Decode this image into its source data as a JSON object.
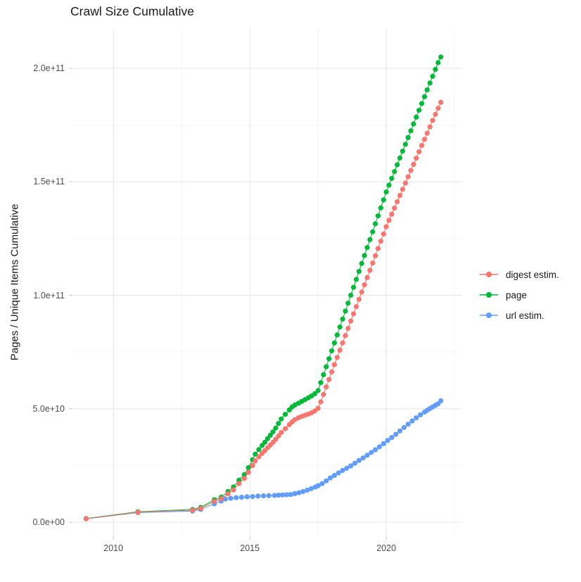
{
  "title": "Crawl Size Cumulative",
  "colors": {
    "digest": "#F8766D",
    "page": "#00BA38",
    "url": "#619CFF",
    "grid_major": "#E9E9E9",
    "grid_minor": "#F4F4F4",
    "tick": "#CFCFCF",
    "axis_text": "#4d4d4d",
    "background": "#FFFFFF"
  },
  "legend": {
    "position": "right",
    "items": [
      {
        "label": "digest estim.",
        "color": "#F8766D"
      },
      {
        "label": "page",
        "color": "#00BA38"
      },
      {
        "label": "url estim.",
        "color": "#619CFF"
      }
    ]
  },
  "chart_data": {
    "type": "line",
    "title": "Crawl Size Cumulative",
    "xlabel": "",
    "ylabel": "Pages / Unique Items Cumulative",
    "xlim": [
      2008.5,
      2022.78
    ],
    "ylim": [
      -6200000000.0,
      217700000000.0
    ],
    "grid": true,
    "legend_position": "right",
    "x_ticks": {
      "major": [
        {
          "value": 2010,
          "label": "2010"
        },
        {
          "value": 2015,
          "label": "2015"
        },
        {
          "value": 2020,
          "label": "2020"
        }
      ],
      "minor": [
        2012.5,
        2017.5,
        2022.5
      ]
    },
    "y_ticks": {
      "major": [
        {
          "value": 0,
          "label": "0.0e+00"
        },
        {
          "value": 50000000000.0,
          "label": "5.0e+10"
        },
        {
          "value": 100000000000.0,
          "label": "1.0e+11"
        },
        {
          "value": 150000000000.0,
          "label": "1.5e+11"
        },
        {
          "value": 200000000000.0,
          "label": "2.0e+11"
        }
      ],
      "minor": [
        25000000000.0,
        75000000000.0,
        125000000000.0,
        175000000000.0
      ]
    },
    "series": [
      {
        "name": "digest estim.",
        "color": "#F8766D",
        "points": [
          [
            2009.0,
            1500000000.0
          ],
          [
            2010.9,
            4400000000.0
          ],
          [
            2012.9,
            5300000000.0
          ],
          [
            2013.2,
            6100000000.0
          ],
          [
            2013.7,
            9200000000.0
          ],
          [
            2013.95,
            10300000000.0
          ],
          [
            2014.2,
            12500000000.0
          ],
          [
            2014.4,
            14200000000.0
          ],
          [
            2014.6,
            17000000000.0
          ],
          [
            2014.8,
            19300000000.0
          ],
          [
            2014.95,
            22000000000.0
          ],
          [
            2015.1,
            25000000000.0
          ],
          [
            2015.2,
            27000000000.0
          ],
          [
            2015.33,
            28800000000.0
          ],
          [
            2015.45,
            30300000000.0
          ],
          [
            2015.55,
            31500000000.0
          ],
          [
            2015.65,
            32800000000.0
          ],
          [
            2015.75,
            34000000000.0
          ],
          [
            2015.85,
            35200000000.0
          ],
          [
            2015.95,
            36500000000.0
          ],
          [
            2016.05,
            38000000000.0
          ],
          [
            2016.15,
            39500000000.0
          ],
          [
            2016.3,
            41200000000.0
          ],
          [
            2016.45,
            43000000000.0
          ],
          [
            2016.55,
            44200000000.0
          ],
          [
            2016.65,
            45200000000.0
          ],
          [
            2016.78,
            46000000000.0
          ],
          [
            2016.9,
            46600000000.0
          ],
          [
            2017.02,
            47100000000.0
          ],
          [
            2017.14,
            47600000000.0
          ],
          [
            2017.26,
            48200000000.0
          ],
          [
            2017.38,
            49000000000.0
          ],
          [
            2017.5,
            50200000000.0
          ],
          [
            2017.6,
            53000000000.0
          ],
          [
            2017.7,
            56300000000.0
          ],
          [
            2017.8,
            59600000000.0
          ],
          [
            2017.9,
            62900000000.0
          ],
          [
            2018.0,
            66200000000.0
          ],
          [
            2018.1,
            69400000000.0
          ],
          [
            2018.2,
            72600000000.0
          ],
          [
            2018.3,
            75800000000.0
          ],
          [
            2018.4,
            79000000000.0
          ],
          [
            2018.5,
            82200000000.0
          ],
          [
            2018.6,
            85400000000.0
          ],
          [
            2018.7,
            88600000000.0
          ],
          [
            2018.8,
            91800000000.0
          ],
          [
            2018.9,
            95000000000.0
          ],
          [
            2019.0,
            98200000000.0
          ],
          [
            2019.1,
            101400000000.0
          ],
          [
            2019.2,
            104600000000.0
          ],
          [
            2019.3,
            107800000000.0
          ],
          [
            2019.4,
            111000000000.0
          ],
          [
            2019.5,
            114200000000.0
          ],
          [
            2019.6,
            117400000000.0
          ],
          [
            2019.7,
            120600000000.0
          ],
          [
            2019.8,
            123800000000.0
          ],
          [
            2019.9,
            127000000000.0
          ],
          [
            2020.0,
            130200000000.0
          ],
          [
            2020.1,
            133000000000.0
          ],
          [
            2020.2,
            135700000000.0
          ],
          [
            2020.3,
            138400000000.0
          ],
          [
            2020.4,
            141200000000.0
          ],
          [
            2020.5,
            144000000000.0
          ],
          [
            2020.6,
            146700000000.0
          ],
          [
            2020.7,
            149400000000.0
          ],
          [
            2020.8,
            152200000000.0
          ],
          [
            2020.9,
            155000000000.0
          ],
          [
            2021.0,
            157700000000.0
          ],
          [
            2021.1,
            160400000000.0
          ],
          [
            2021.2,
            163200000000.0
          ],
          [
            2021.3,
            166000000000.0
          ],
          [
            2021.4,
            168700000000.0
          ],
          [
            2021.5,
            171400000000.0
          ],
          [
            2021.6,
            174200000000.0
          ],
          [
            2021.7,
            177000000000.0
          ],
          [
            2021.8,
            179700000000.0
          ],
          [
            2021.9,
            182400000000.0
          ],
          [
            2022.0,
            185000000000.0
          ]
        ]
      },
      {
        "name": "page",
        "color": "#00BA38",
        "points": [
          [
            2009.0,
            1600000000.0
          ],
          [
            2010.9,
            4600000000.0
          ],
          [
            2012.9,
            5600000000.0
          ],
          [
            2013.2,
            6500000000.0
          ],
          [
            2013.7,
            9900000000.0
          ],
          [
            2013.95,
            11000000000.0
          ],
          [
            2014.2,
            13500000000.0
          ],
          [
            2014.4,
            15500000000.0
          ],
          [
            2014.6,
            18500000000.0
          ],
          [
            2014.8,
            21000000000.0
          ],
          [
            2014.95,
            24000000000.0
          ],
          [
            2015.1,
            27500000000.0
          ],
          [
            2015.2,
            30000000000.0
          ],
          [
            2015.33,
            32000000000.0
          ],
          [
            2015.45,
            33800000000.0
          ],
          [
            2015.55,
            35200000000.0
          ],
          [
            2015.65,
            36800000000.0
          ],
          [
            2015.75,
            38300000000.0
          ],
          [
            2015.85,
            39800000000.0
          ],
          [
            2015.95,
            41500000000.0
          ],
          [
            2016.05,
            43500000000.0
          ],
          [
            2016.15,
            45500000000.0
          ],
          [
            2016.3,
            47500000000.0
          ],
          [
            2016.45,
            49500000000.0
          ],
          [
            2016.55,
            50800000000.0
          ],
          [
            2016.65,
            51600000000.0
          ],
          [
            2016.78,
            52400000000.0
          ],
          [
            2016.9,
            53200000000.0
          ],
          [
            2017.02,
            54000000000.0
          ],
          [
            2017.14,
            54800000000.0
          ],
          [
            2017.26,
            55600000000.0
          ],
          [
            2017.38,
            56600000000.0
          ],
          [
            2017.5,
            58000000000.0
          ],
          [
            2017.6,
            61500000000.0
          ],
          [
            2017.7,
            65000000000.0
          ],
          [
            2017.8,
            68500000000.0
          ],
          [
            2017.9,
            72000000000.0
          ],
          [
            2018.0,
            75500000000.0
          ],
          [
            2018.1,
            79000000000.0
          ],
          [
            2018.2,
            82500000000.0
          ],
          [
            2018.3,
            86000000000.0
          ],
          [
            2018.4,
            89500000000.0
          ],
          [
            2018.5,
            93000000000.0
          ],
          [
            2018.6,
            96500000000.0
          ],
          [
            2018.7,
            100000000000.0
          ],
          [
            2018.8,
            103500000000.0
          ],
          [
            2018.9,
            107000000000.0
          ],
          [
            2019.0,
            110500000000.0
          ],
          [
            2019.1,
            114000000000.0
          ],
          [
            2019.2,
            117500000000.0
          ],
          [
            2019.3,
            121000000000.0
          ],
          [
            2019.4,
            124500000000.0
          ],
          [
            2019.5,
            128000000000.0
          ],
          [
            2019.6,
            131500000000.0
          ],
          [
            2019.7,
            135000000000.0
          ],
          [
            2019.8,
            138500000000.0
          ],
          [
            2019.9,
            142000000000.0
          ],
          [
            2020.0,
            145500000000.0
          ],
          [
            2020.1,
            148500000000.0
          ],
          [
            2020.2,
            151500000000.0
          ],
          [
            2020.3,
            154500000000.0
          ],
          [
            2020.4,
            157500000000.0
          ],
          [
            2020.5,
            160500000000.0
          ],
          [
            2020.6,
            163500000000.0
          ],
          [
            2020.7,
            166500000000.0
          ],
          [
            2020.8,
            169500000000.0
          ],
          [
            2020.9,
            172500000000.0
          ],
          [
            2021.0,
            175500000000.0
          ],
          [
            2021.1,
            178500000000.0
          ],
          [
            2021.2,
            181500000000.0
          ],
          [
            2021.3,
            184500000000.0
          ],
          [
            2021.4,
            187500000000.0
          ],
          [
            2021.5,
            190500000000.0
          ],
          [
            2021.6,
            193500000000.0
          ],
          [
            2021.7,
            196500000000.0
          ],
          [
            2021.8,
            199500000000.0
          ],
          [
            2021.9,
            202500000000.0
          ],
          [
            2022.0,
            205000000000.0
          ]
        ]
      },
      {
        "name": "url estim.",
        "color": "#619CFF",
        "points": [
          [
            2009.0,
            1500000000.0
          ],
          [
            2010.9,
            4200000000.0
          ],
          [
            2012.9,
            4900000000.0
          ],
          [
            2013.2,
            5600000000.0
          ],
          [
            2013.7,
            8100000000.0
          ],
          [
            2013.95,
            9300000000.0
          ],
          [
            2014.1,
            10200000000.0
          ],
          [
            2014.3,
            10500000000.0
          ],
          [
            2014.5,
            10800000000.0
          ],
          [
            2014.7,
            11000000000.0
          ],
          [
            2014.9,
            11200000000.0
          ],
          [
            2015.1,
            11300000000.0
          ],
          [
            2015.3,
            11500000000.0
          ],
          [
            2015.5,
            11600000000.0
          ],
          [
            2015.7,
            11700000000.0
          ],
          [
            2015.9,
            11800000000.0
          ],
          [
            2016.05,
            11900000000.0
          ],
          [
            2016.2,
            12000000000.0
          ],
          [
            2016.35,
            12100000000.0
          ],
          [
            2016.5,
            12200000000.0
          ],
          [
            2016.65,
            12600000000.0
          ],
          [
            2016.8,
            13000000000.0
          ],
          [
            2016.95,
            13500000000.0
          ],
          [
            2017.1,
            14100000000.0
          ],
          [
            2017.25,
            14800000000.0
          ],
          [
            2017.4,
            15500000000.0
          ],
          [
            2017.5,
            16100000000.0
          ],
          [
            2017.65,
            17000000000.0
          ],
          [
            2017.8,
            18200000000.0
          ],
          [
            2017.95,
            19500000000.0
          ],
          [
            2018.1,
            20600000000.0
          ],
          [
            2018.25,
            21700000000.0
          ],
          [
            2018.4,
            22800000000.0
          ],
          [
            2018.55,
            23800000000.0
          ],
          [
            2018.7,
            24800000000.0
          ],
          [
            2018.85,
            26000000000.0
          ],
          [
            2019.0,
            27200000000.0
          ],
          [
            2019.15,
            28300000000.0
          ],
          [
            2019.3,
            29500000000.0
          ],
          [
            2019.45,
            30700000000.0
          ],
          [
            2019.6,
            31900000000.0
          ],
          [
            2019.75,
            33200000000.0
          ],
          [
            2019.9,
            34600000000.0
          ],
          [
            2020.05,
            36000000000.0
          ],
          [
            2020.2,
            37300000000.0
          ],
          [
            2020.35,
            38700000000.0
          ],
          [
            2020.5,
            40200000000.0
          ],
          [
            2020.65,
            41700000000.0
          ],
          [
            2020.8,
            43200000000.0
          ],
          [
            2020.95,
            44600000000.0
          ],
          [
            2021.1,
            46000000000.0
          ],
          [
            2021.25,
            47300000000.0
          ],
          [
            2021.4,
            48500000000.0
          ],
          [
            2021.5,
            49300000000.0
          ],
          [
            2021.6,
            50100000000.0
          ],
          [
            2021.7,
            50800000000.0
          ],
          [
            2021.8,
            51500000000.0
          ],
          [
            2021.9,
            52200000000.0
          ],
          [
            2022.0,
            53500000000.0
          ]
        ]
      }
    ]
  }
}
